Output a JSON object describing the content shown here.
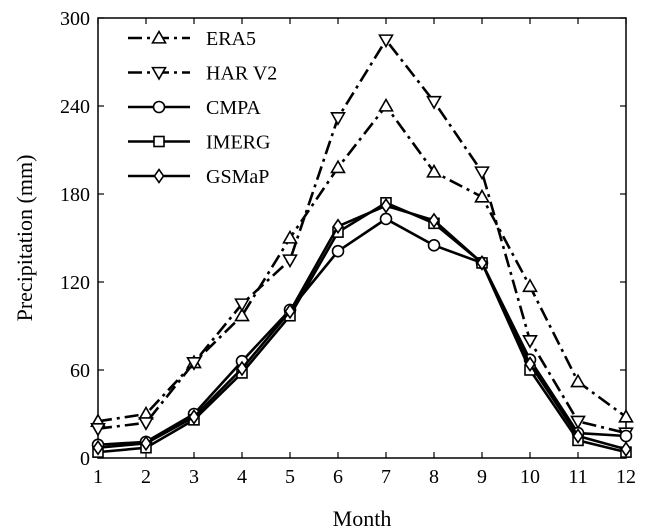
{
  "chart_data": {
    "type": "line",
    "xlabel": "Month",
    "ylabel": "Precipitation (mm)",
    "x": [
      1,
      2,
      3,
      4,
      5,
      6,
      7,
      8,
      9,
      10,
      11,
      12
    ],
    "xlim": [
      1,
      12
    ],
    "ylim": [
      0,
      300
    ],
    "xticks": [
      1,
      2,
      3,
      4,
      5,
      6,
      7,
      8,
      9,
      10,
      11,
      12
    ],
    "yticks": [
      0,
      60,
      120,
      180,
      240,
      300
    ],
    "grid": false,
    "legend_position": "top-left",
    "series": [
      {
        "name": "ERA5",
        "marker": "triangle-up",
        "line_style": "dash-dot",
        "values": [
          25,
          30,
          65,
          97,
          150,
          198,
          240,
          195,
          178,
          117,
          52,
          28
        ]
      },
      {
        "name": "HAR V2",
        "marker": "triangle-down",
        "line_style": "dash-dot",
        "values": [
          20,
          24,
          65,
          105,
          135,
          232,
          285,
          243,
          195,
          80,
          25,
          17
        ]
      },
      {
        "name": "CMPA",
        "marker": "circle",
        "line_style": "solid",
        "values": [
          9,
          11,
          30,
          66,
          101,
          141,
          163,
          145,
          133,
          67,
          17,
          15
        ]
      },
      {
        "name": "IMERG",
        "marker": "square",
        "line_style": "solid",
        "values": [
          4,
          7,
          26,
          58,
          97,
          154,
          174,
          160,
          133,
          60,
          12,
          4
        ]
      },
      {
        "name": "GSMaP",
        "marker": "diamond",
        "line_style": "solid",
        "values": [
          7,
          10,
          28,
          61,
          100,
          158,
          172,
          162,
          133,
          64,
          15,
          6
        ]
      }
    ]
  }
}
